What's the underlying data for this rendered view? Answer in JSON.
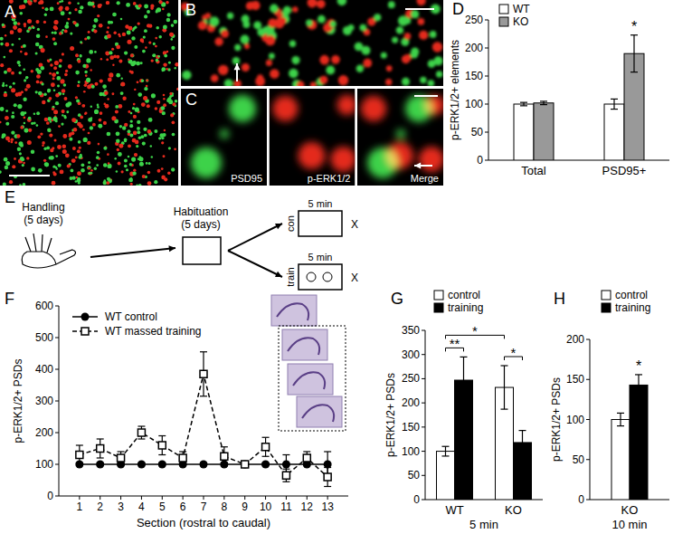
{
  "images": [
    {
      "panel_label": "A"
    },
    {
      "panel_label": "B"
    },
    {
      "panel_label": "C",
      "captions": [
        "PSD95",
        "p-ERK1/2",
        "Merge"
      ]
    }
  ],
  "diagram": {
    "panel_label": "E",
    "handling": [
      "Handling",
      "(5 days)"
    ],
    "habituation": [
      "Habituation",
      "(5 days)"
    ],
    "branches": [
      {
        "label": "con",
        "duration": "5 min",
        "end": "X"
      },
      {
        "label": "train",
        "duration": "5 min",
        "end": "X"
      }
    ]
  },
  "chart_data": [
    {
      "panel_label": "D",
      "type": "bar",
      "categories": [
        "Total",
        "PSD95+"
      ],
      "series": [
        {
          "name": "WT",
          "color": "#ffffff",
          "values": [
            100,
            100
          ],
          "errors": [
            3,
            9
          ]
        },
        {
          "name": "KO",
          "color": "#999999",
          "values": [
            102,
            190
          ],
          "errors": [
            3,
            33
          ]
        }
      ],
      "y_label": "p-ERK1/2+ elements",
      "ylim": [
        0,
        250
      ],
      "yticks": [
        0,
        50,
        100,
        150,
        200,
        250
      ],
      "legend": "upper left",
      "annotations": [
        {
          "text": "*",
          "at": [
            1,
            1
          ]
        }
      ]
    },
    {
      "panel_label": "F",
      "type": "line",
      "x": [
        1,
        2,
        3,
        4,
        5,
        6,
        7,
        8,
        9,
        10,
        11,
        12,
        13
      ],
      "xlim": [
        0,
        14
      ],
      "xticks": [
        1,
        2,
        3,
        4,
        5,
        6,
        7,
        8,
        9,
        10,
        11,
        12,
        13
      ],
      "ylim": [
        0,
        600
      ],
      "yticks": [
        0,
        100,
        200,
        300,
        400,
        500,
        600
      ],
      "x_label": "Section (rostral to caudal)",
      "y_label": "p-ERK1/2+ PSDs",
      "legend": "upper left",
      "series": [
        {
          "name": "WT control",
          "color": "#000000",
          "marker": "circle",
          "line_style": "solid",
          "values": [
            100,
            100,
            100,
            100,
            100,
            100,
            100,
            100,
            100,
            100,
            100,
            100,
            100
          ],
          "errors": [
            5,
            5,
            5,
            5,
            5,
            5,
            5,
            5,
            5,
            5,
            30,
            5,
            40
          ]
        },
        {
          "name": "WT massed training",
          "color": "#000000",
          "marker": "square",
          "line_style": "dashed",
          "values": [
            130,
            150,
            120,
            200,
            160,
            120,
            385,
            125,
            100,
            155,
            65,
            120,
            60
          ],
          "errors": [
            30,
            30,
            20,
            20,
            30,
            20,
            70,
            30,
            10,
            30,
            20,
            20,
            30
          ]
        }
      ]
    },
    {
      "panel_label": "G",
      "type": "bar",
      "categories": [
        "WT",
        "KO"
      ],
      "x_label": "5 min",
      "series": [
        {
          "name": "control",
          "color": "#ffffff",
          "values": [
            100,
            232
          ],
          "errors": [
            10,
            45
          ]
        },
        {
          "name": "training",
          "color": "#000000",
          "values": [
            247,
            118
          ],
          "errors": [
            48,
            25
          ]
        }
      ],
      "y_label": "p-ERK1/2+ PSDs",
      "ylim": [
        0,
        350
      ],
      "yticks": [
        0,
        50,
        100,
        150,
        200,
        250,
        300,
        350
      ],
      "legend": "upper left",
      "annotations": [
        {
          "text": "**",
          "from": [
            0,
            0
          ],
          "to": [
            0,
            1
          ]
        },
        {
          "text": "*",
          "from": [
            0,
            0
          ],
          "to": [
            1,
            0
          ]
        },
        {
          "text": "*",
          "from": [
            1,
            0
          ],
          "to": [
            1,
            1
          ]
        }
      ]
    },
    {
      "panel_label": "H",
      "type": "bar",
      "categories": [
        "KO"
      ],
      "x_label": "10 min",
      "series": [
        {
          "name": "control",
          "color": "#ffffff",
          "values": [
            100
          ],
          "errors": [
            8
          ]
        },
        {
          "name": "training",
          "color": "#000000",
          "values": [
            143
          ],
          "errors": [
            13
          ]
        }
      ],
      "y_label": "p-ERK1/2+ PSDs",
      "ylim": [
        0,
        200
      ],
      "yticks": [
        0,
        50,
        100,
        150,
        200
      ],
      "legend": "upper left",
      "annotations": [
        {
          "text": "*",
          "at": [
            0,
            1
          ]
        }
      ]
    }
  ]
}
